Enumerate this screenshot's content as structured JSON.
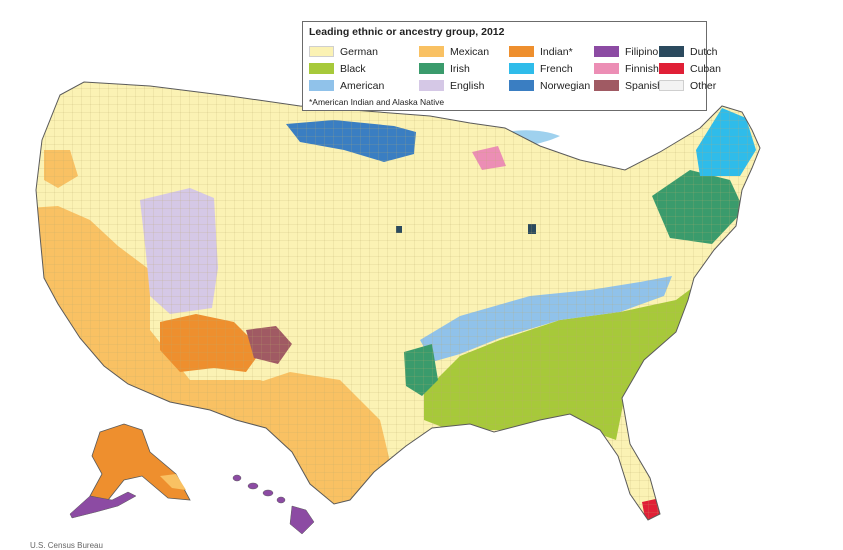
{
  "legend": {
    "title": "Leading ethnic or ancestry group, 2012",
    "note": "*American Indian and Alaska Native",
    "items": [
      {
        "label": "German",
        "color": "#fbf2b4"
      },
      {
        "label": "Mexican",
        "color": "#f9c163"
      },
      {
        "label": "Indian*",
        "color": "#ee8f2e"
      },
      {
        "label": "Filipino",
        "color": "#8c4ba3"
      },
      {
        "label": "Dutch",
        "color": "#2b4a5e"
      },
      {
        "label": "Black",
        "color": "#a7c93a"
      },
      {
        "label": "Irish",
        "color": "#3a9b6c"
      },
      {
        "label": "French",
        "color": "#2fbcea"
      },
      {
        "label": "Finnish",
        "color": "#ec8eb5"
      },
      {
        "label": "Cuban",
        "color": "#e01f36"
      },
      {
        "label": "American",
        "color": "#90c2ea"
      },
      {
        "label": "English",
        "color": "#d5c8e6"
      },
      {
        "label": "Norwegian",
        "color": "#3a7ec2"
      },
      {
        "label": "Spanish",
        "color": "#a05a63"
      },
      {
        "label": "Other",
        "color": "#f3f3f3"
      }
    ]
  },
  "map": {
    "water_color": "#9fd1ee",
    "border_color": "#5a5a5a"
  },
  "credit": "U.S. Census Bureau"
}
